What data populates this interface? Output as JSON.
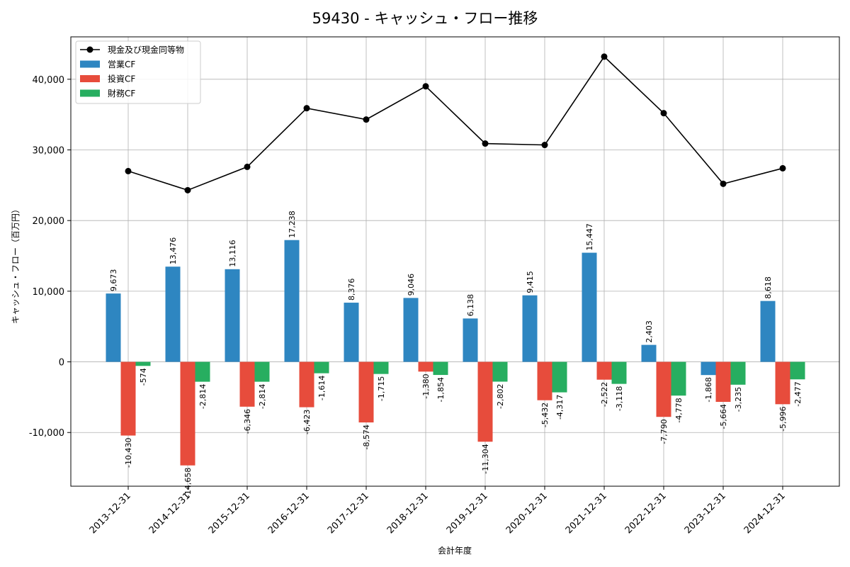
{
  "chart_data": {
    "type": "bar",
    "title": "59430 - キャッシュ・フロー推移",
    "xlabel": "会計年度",
    "ylabel": "キャッシュ・フロー（百万円）",
    "categories": [
      "2013-12-31",
      "2014-12-31",
      "2015-12-31",
      "2016-12-31",
      "2017-12-31",
      "2018-12-31",
      "2019-12-31",
      "2020-12-31",
      "2021-12-31",
      "2022-12-31",
      "2023-12-31",
      "2024-12-31"
    ],
    "ylim": [
      -17600,
      46000
    ],
    "yticks": [
      -10000,
      0,
      10000,
      20000,
      30000,
      40000
    ],
    "ytick_labels": [
      "-10,000",
      "0",
      "10,000",
      "20,000",
      "30,000",
      "40,000"
    ],
    "grid": true,
    "legend_position": "top-left",
    "series": [
      {
        "name": "営業CF",
        "kind": "bar",
        "color": "#2e86c1",
        "values": [
          9673,
          13476,
          13116,
          17238,
          8376,
          9046,
          6138,
          9415,
          15447,
          2403,
          -1868,
          8618
        ],
        "labels": [
          "9,673",
          "13,476",
          "13,116",
          "17,238",
          "8,376",
          "9,046",
          "6,138",
          "9,415",
          "15,447",
          "2,403",
          "-1,868",
          "8,618"
        ]
      },
      {
        "name": "投資CF",
        "kind": "bar",
        "color": "#e74c3c",
        "values": [
          -10430,
          -14658,
          -6346,
          -6423,
          -8574,
          -1380,
          -11304,
          -5432,
          -2522,
          -7790,
          -5664,
          -5996
        ],
        "labels": [
          "-10,430",
          "-14,658",
          "-6,346",
          "-6,423",
          "-8,574",
          "-1,380",
          "-11,304",
          "-5,432",
          "-2,522",
          "-7,790",
          "-5,664",
          "-5,996"
        ]
      },
      {
        "name": "財務CF",
        "kind": "bar",
        "color": "#27ae60",
        "values": [
          -574,
          -2814,
          -2814,
          -1614,
          -1715,
          -1854,
          -2802,
          -4317,
          -3118,
          -4778,
          -3235,
          -2477
        ],
        "labels": [
          "-574",
          "-2,814",
          "-2,814",
          "-1,614",
          "-1,715",
          "-1,854",
          "-2,802",
          "-4,317",
          "-3,118",
          "-4,778",
          "-3,235",
          "-2,477"
        ]
      },
      {
        "name": "現金及び現金同等物",
        "kind": "line",
        "color": "#000000",
        "values": [
          27000,
          24300,
          27600,
          35900,
          34300,
          39000,
          30900,
          30700,
          43200,
          35200,
          25200,
          27400
        ]
      }
    ]
  }
}
